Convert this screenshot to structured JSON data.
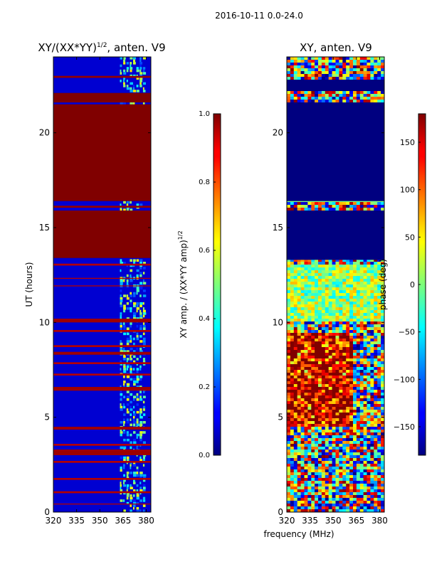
{
  "suptitle": "2016-10-11 0.0-24.0",
  "xlabel_shared": "frequency (MHz)",
  "chart_data": [
    {
      "type": "heatmap",
      "title": "XY/(XX*YY)",
      "title_exp": "1/2",
      "title_suffix": ", anten. V9",
      "xlabel": "",
      "ylabel": "UT (hours)",
      "x_ticks": [
        320,
        335,
        350,
        365,
        380
      ],
      "xlim": [
        320,
        383
      ],
      "y_ticks": [
        0,
        5,
        10,
        15,
        20
      ],
      "ylim": [
        0,
        24
      ],
      "dense_region_mhz": [
        363,
        380
      ],
      "colorbar": {
        "label": "XY amp. / (XX*YY amp)",
        "label_exp": "1/2",
        "ticks": [
          "0.0",
          "0.2",
          "0.4",
          "0.6",
          "0.8",
          "1.0"
        ],
        "range": [
          0.0,
          1.0
        ],
        "colormap": "jet"
      },
      "bands": [
        {
          "start": 21.6,
          "end": 22.1,
          "value": 1.0
        },
        {
          "start": 16.4,
          "end": 21.5,
          "value": 1.0
        },
        {
          "start": 13.4,
          "end": 15.9,
          "value": 1.0
        },
        {
          "start": 22.9,
          "end": 23.0,
          "value": 0.98
        },
        {
          "start": 16.05,
          "end": 16.15,
          "value": 0.98
        },
        {
          "start": 13.0,
          "end": 13.1,
          "value": 0.95
        },
        {
          "start": 12.3,
          "end": 12.35,
          "value": 0.95
        },
        {
          "start": 11.9,
          "end": 11.95,
          "value": 0.95
        },
        {
          "start": 10.0,
          "end": 10.2,
          "value": 0.97
        },
        {
          "start": 9.5,
          "end": 9.6,
          "value": 0.95
        },
        {
          "start": 8.7,
          "end": 8.8,
          "value": 0.95
        },
        {
          "start": 8.3,
          "end": 8.45,
          "value": 0.97
        },
        {
          "start": 7.8,
          "end": 7.9,
          "value": 0.95
        },
        {
          "start": 7.2,
          "end": 7.3,
          "value": 0.95
        },
        {
          "start": 6.4,
          "end": 6.6,
          "value": 0.97
        },
        {
          "start": 4.35,
          "end": 4.5,
          "value": 0.97
        },
        {
          "start": 3.5,
          "end": 3.6,
          "value": 0.95
        },
        {
          "start": 3.0,
          "end": 3.3,
          "value": 0.97
        },
        {
          "start": 2.6,
          "end": 2.7,
          "value": 0.95
        },
        {
          "start": 1.7,
          "end": 1.8,
          "value": 0.95
        },
        {
          "start": 1.0,
          "end": 1.1,
          "value": 0.95
        },
        {
          "start": 0.4,
          "end": 0.45,
          "value": 0.95
        }
      ],
      "baseline_value": 0.08
    },
    {
      "type": "heatmap",
      "title": "XY, anten. V9",
      "xlabel": "frequency (MHz)",
      "ylabel": "",
      "x_ticks": [
        320,
        335,
        350,
        365,
        380
      ],
      "xlim": [
        320,
        383
      ],
      "y_ticks": [
        0,
        5,
        10,
        15,
        20
      ],
      "ylim": [
        0,
        24
      ],
      "colorbar": {
        "label": "phase (deg)",
        "ticks": [
          "−150",
          "−100",
          "−50",
          "0",
          "50",
          "100",
          "150"
        ],
        "tick_values": [
          -150,
          -100,
          -50,
          0,
          50,
          100,
          150
        ],
        "range": [
          -180,
          180
        ],
        "colormap": "jet"
      },
      "flat_bands": [
        {
          "start": 16.4,
          "end": 21.6,
          "value": -180
        },
        {
          "start": 13.3,
          "end": 15.9,
          "value": -180
        },
        {
          "start": 22.2,
          "end": 22.8,
          "value": -180
        }
      ]
    }
  ]
}
